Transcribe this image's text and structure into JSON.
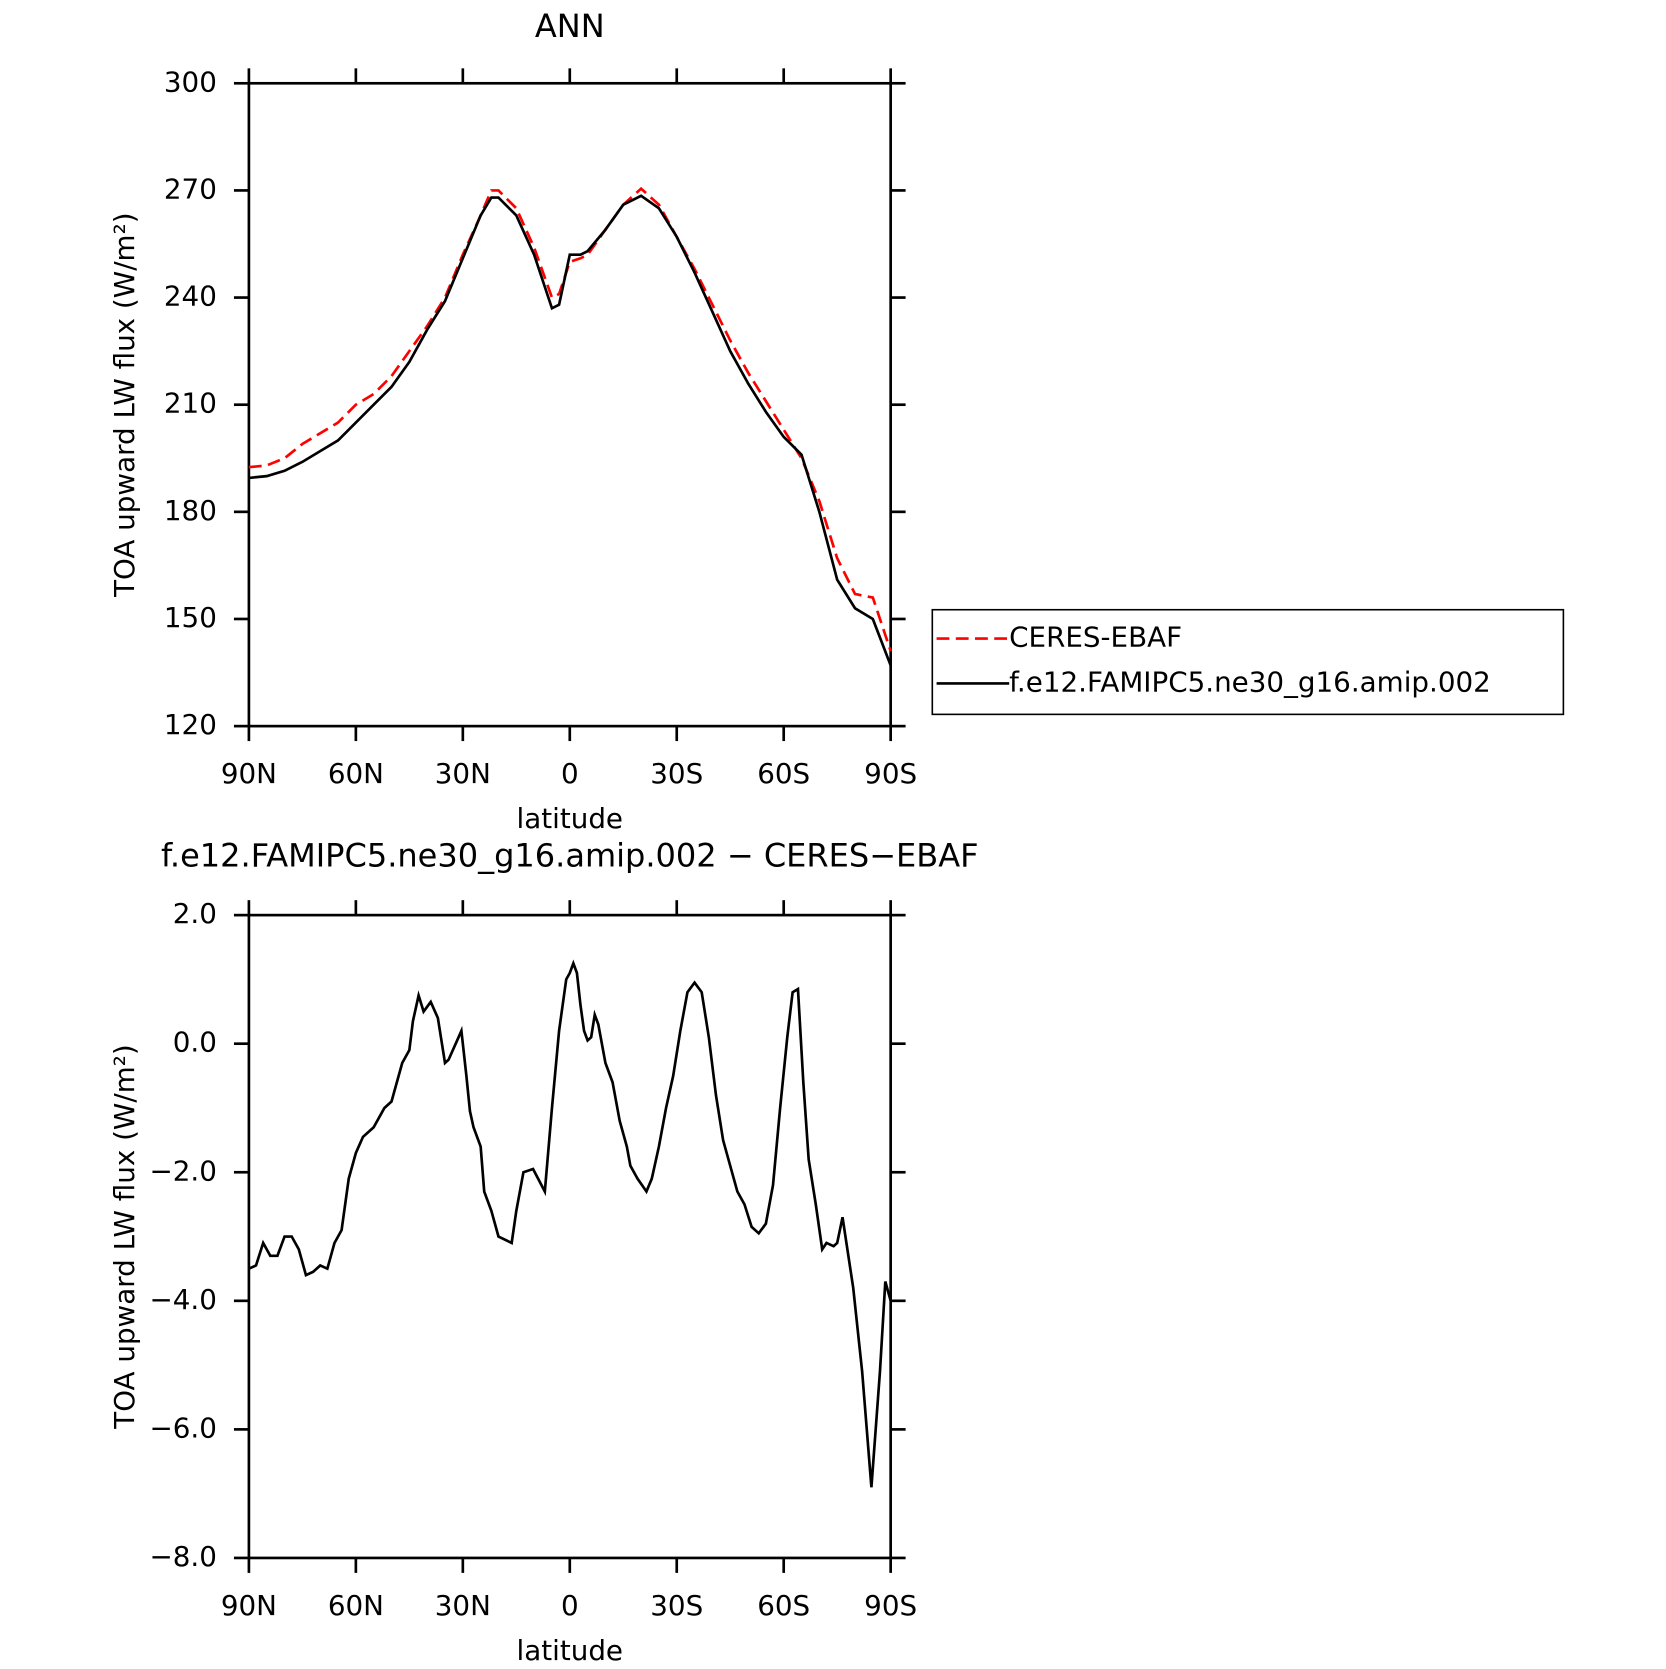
{
  "chart_data": [
    {
      "type": "line",
      "title": "ANN",
      "x_label": "latitude",
      "y_label": "TOA upward LW flux (W/m²)",
      "xlim": [
        90,
        -90
      ],
      "xticks": [
        {
          "value": 90,
          "label": "90N"
        },
        {
          "value": 60,
          "label": "60N"
        },
        {
          "value": 30,
          "label": "30N"
        },
        0,
        {
          "value": -30,
          "label": "30S"
        },
        {
          "value": -60,
          "label": "60S"
        },
        {
          "value": -90,
          "label": "90S"
        }
      ],
      "ylim": [
        120,
        300
      ],
      "yticks": [
        120,
        150,
        180,
        210,
        240,
        270,
        300
      ],
      "legend": "right",
      "x": [
        90,
        85,
        80,
        75,
        70,
        65,
        60,
        55,
        50,
        45,
        40,
        35,
        30,
        25,
        22,
        20,
        15,
        10,
        5,
        3,
        0,
        -3,
        -5,
        -10,
        -15,
        -20,
        -25,
        -30,
        -35,
        -40,
        -45,
        -50,
        -55,
        -60,
        -65,
        -70,
        -75,
        -80,
        -85,
        -90
      ],
      "series": [
        {
          "name": "CERES-EBAF",
          "color": "#ff0000",
          "dash": true,
          "values": [
            192.5,
            193,
            195,
            199,
            202,
            205,
            210,
            213,
            218,
            225,
            232,
            240,
            252,
            263,
            270,
            270,
            265,
            254,
            240,
            241,
            250,
            251,
            252,
            259,
            266,
            270.5,
            266,
            257,
            248,
            238,
            228,
            219,
            211,
            203,
            195,
            183,
            167,
            157,
            156,
            141
          ]
        },
        {
          "name": "f.e12.FAMIPC5.ne30_g16.amip.002",
          "color": "#000000",
          "dash": false,
          "values": [
            189.5,
            190,
            191.5,
            194,
            197,
            200,
            205,
            210,
            215,
            222,
            231,
            239,
            251,
            263,
            268,
            268,
            263,
            252,
            237,
            238,
            252,
            252,
            253,
            259,
            266,
            268.5,
            265,
            257,
            247,
            236,
            225,
            216,
            208,
            201,
            196,
            180,
            161,
            153,
            150,
            137
          ]
        }
      ]
    },
    {
      "type": "line",
      "title": "f.e12.FAMIPC5.ne30_g16.amip.002 − CERES−EBAF",
      "x_label": "latitude",
      "y_label": "TOA upward LW flux (W/m²)",
      "xlim": [
        90,
        -90
      ],
      "xticks": [
        {
          "value": 90,
          "label": "90N"
        },
        {
          "value": 60,
          "label": "60N"
        },
        {
          "value": 30,
          "label": "30N"
        },
        0,
        {
          "value": -30,
          "label": "30S"
        },
        {
          "value": -60,
          "label": "60S"
        },
        {
          "value": -90,
          "label": "90S"
        }
      ],
      "ylim": [
        -8,
        2
      ],
      "yticks": [
        {
          "value": -8,
          "label": "−8.0"
        },
        {
          "value": -6,
          "label": "−6.0"
        },
        {
          "value": -4,
          "label": "−4.0"
        },
        {
          "value": -2,
          "label": "−2.0"
        },
        {
          "value": 0,
          "label": "0.0"
        },
        {
          "value": 2,
          "label": "2.0"
        }
      ],
      "x": [
        90,
        88,
        86,
        84,
        82,
        80,
        78,
        76,
        74,
        72,
        70,
        68,
        66,
        64,
        62,
        60,
        58,
        55,
        52,
        50,
        47,
        45,
        44,
        42.4,
        41,
        39,
        37,
        35,
        34,
        32,
        30.4,
        29,
        28,
        27,
        25,
        24,
        22,
        20,
        16.3,
        15,
        13,
        10.3,
        7,
        5,
        3,
        1,
        0,
        -1,
        -2,
        -3,
        -4,
        -5,
        -6,
        -7,
        -8,
        -10,
        -12,
        -14,
        -16,
        -17,
        -19,
        -21.5,
        -23,
        -25,
        -27,
        -29,
        -31,
        -33,
        -35,
        -37,
        -39,
        -41,
        -43,
        -45,
        -47,
        -49,
        -51,
        -53,
        -55,
        -57,
        -59,
        -61,
        -62.5,
        -64,
        -65.5,
        -67,
        -69,
        -70.8,
        -72,
        -74,
        -75,
        -76.5,
        -79.5,
        -82,
        -84.6,
        -87,
        -88.5,
        -90
      ],
      "series": [
        {
          "name": null,
          "color": "#000000",
          "dash": false,
          "values": [
            -3.5,
            -3.45,
            -3.1,
            -3.3,
            -3.3,
            -3.0,
            -3.0,
            -3.2,
            -3.6,
            -3.55,
            -3.45,
            -3.5,
            -3.1,
            -2.9,
            -2.1,
            -1.7,
            -1.45,
            -1.3,
            -1.0,
            -0.9,
            -0.3,
            -0.1,
            0.35,
            0.75,
            0.5,
            0.65,
            0.4,
            -0.3,
            -0.25,
            0.0,
            0.2,
            -0.5,
            -1.05,
            -1.3,
            -1.6,
            -2.3,
            -2.6,
            -3.0,
            -3.1,
            -2.6,
            -2.0,
            -1.95,
            -2.3,
            -1.0,
            0.2,
            1.0,
            1.1,
            1.25,
            1.1,
            0.6,
            0.2,
            0.05,
            0.1,
            0.45,
            0.3,
            -0.3,
            -0.6,
            -1.2,
            -1.6,
            -1.9,
            -2.1,
            -2.3,
            -2.1,
            -1.6,
            -1.0,
            -0.5,
            0.2,
            0.8,
            0.95,
            0.8,
            0.1,
            -0.8,
            -1.5,
            -1.9,
            -2.3,
            -2.5,
            -2.85,
            -2.95,
            -2.8,
            -2.2,
            -1.0,
            0.1,
            0.8,
            0.85,
            -0.6,
            -1.8,
            -2.5,
            -3.2,
            -3.1,
            -3.15,
            -3.1,
            -2.7,
            -3.8,
            -5.1,
            -6.9,
            -5.1,
            -3.7,
            -4.0
          ]
        }
      ]
    }
  ]
}
